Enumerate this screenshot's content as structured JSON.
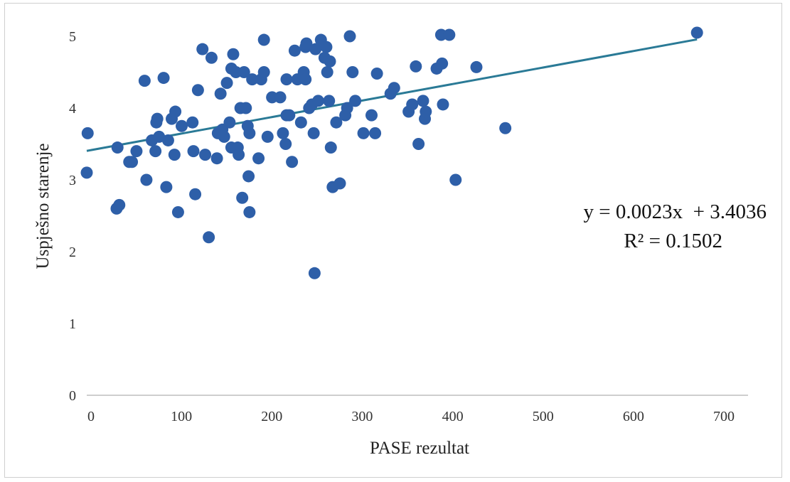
{
  "chart_data": {
    "type": "scatter",
    "title": "",
    "xlabel": "PASE rezultat",
    "ylabel": "Uspješno starenje",
    "xlim": [
      0,
      700
    ],
    "ylim": [
      0,
      5
    ],
    "xticks": [
      "0",
      "100",
      "200",
      "300",
      "400",
      "500",
      "600",
      "700"
    ],
    "yticks": [
      "0",
      "1",
      "2",
      "3",
      "4",
      "5"
    ],
    "grid": false,
    "legend": "none",
    "marker_color": "#2e5fa8",
    "trendline": {
      "slope": 0.0023,
      "intercept": 3.4036,
      "color": "#2a7a96",
      "equation_label": "y = 0.0023x  + 3.4036",
      "r2_label": "R² = 0.1502"
    },
    "points": [
      [
        1,
        3.65
      ],
      [
        0,
        3.1
      ],
      [
        34,
        3.45
      ],
      [
        33,
        2.6
      ],
      [
        36,
        2.65
      ],
      [
        47,
        3.25
      ],
      [
        50,
        3.25
      ],
      [
        55,
        3.4
      ],
      [
        64,
        4.38
      ],
      [
        66,
        3.0
      ],
      [
        72,
        3.55
      ],
      [
        76,
        3.4
      ],
      [
        77,
        3.8
      ],
      [
        78,
        3.85
      ],
      [
        80,
        3.6
      ],
      [
        85,
        4.42
      ],
      [
        88,
        2.9
      ],
      [
        90,
        3.55
      ],
      [
        94,
        3.85
      ],
      [
        97,
        3.35
      ],
      [
        98,
        3.95
      ],
      [
        101,
        2.55
      ],
      [
        105,
        3.75
      ],
      [
        117,
        3.8
      ],
      [
        118,
        3.4
      ],
      [
        120,
        2.8
      ],
      [
        123,
        4.25
      ],
      [
        128,
        4.82
      ],
      [
        131,
        3.35
      ],
      [
        135,
        2.2
      ],
      [
        138,
        4.7
      ],
      [
        144,
        3.3
      ],
      [
        145,
        3.65
      ],
      [
        148,
        4.2
      ],
      [
        150,
        3.7
      ],
      [
        152,
        3.6
      ],
      [
        155,
        4.35
      ],
      [
        158,
        3.8
      ],
      [
        160,
        4.55
      ],
      [
        160,
        3.45
      ],
      [
        162,
        4.75
      ],
      [
        165,
        4.5
      ],
      [
        167,
        3.45
      ],
      [
        168,
        3.35
      ],
      [
        170,
        4.0
      ],
      [
        172,
        2.75
      ],
      [
        174,
        4.5
      ],
      [
        176,
        4.0
      ],
      [
        178,
        3.75
      ],
      [
        179,
        3.05
      ],
      [
        180,
        3.65
      ],
      [
        180,
        2.55
      ],
      [
        183,
        4.4
      ],
      [
        190,
        3.3
      ],
      [
        193,
        4.4
      ],
      [
        196,
        4.95
      ],
      [
        196,
        4.5
      ],
      [
        200,
        3.6
      ],
      [
        205,
        4.15
      ],
      [
        214,
        4.15
      ],
      [
        217,
        3.65
      ],
      [
        220,
        3.5
      ],
      [
        221,
        3.9
      ],
      [
        221,
        4.4
      ],
      [
        224,
        3.9
      ],
      [
        227,
        3.25
      ],
      [
        230,
        4.8
      ],
      [
        233,
        4.4
      ],
      [
        237,
        3.8
      ],
      [
        240,
        4.5
      ],
      [
        242,
        4.4
      ],
      [
        242,
        4.85
      ],
      [
        243,
        4.9
      ],
      [
        246,
        4.0
      ],
      [
        249,
        4.05
      ],
      [
        251,
        3.65
      ],
      [
        252,
        1.7
      ],
      [
        253,
        4.82
      ],
      [
        256,
        4.1
      ],
      [
        259,
        4.95
      ],
      [
        263,
        4.7
      ],
      [
        265,
        4.85
      ],
      [
        266,
        4.5
      ],
      [
        268,
        4.1
      ],
      [
        269,
        4.65
      ],
      [
        270,
        3.45
      ],
      [
        272,
        2.9
      ],
      [
        276,
        3.8
      ],
      [
        280,
        2.95
      ],
      [
        286,
        3.9
      ],
      [
        288,
        4.0
      ],
      [
        291,
        5.0
      ],
      [
        294,
        4.5
      ],
      [
        297,
        4.1
      ],
      [
        306,
        3.65
      ],
      [
        315,
        3.9
      ],
      [
        319,
        3.65
      ],
      [
        321,
        4.48
      ],
      [
        336,
        4.2
      ],
      [
        340,
        4.28
      ],
      [
        356,
        3.95
      ],
      [
        360,
        4.05
      ],
      [
        364,
        4.58
      ],
      [
        367,
        3.5
      ],
      [
        372,
        4.1
      ],
      [
        374,
        3.85
      ],
      [
        375,
        3.95
      ],
      [
        387,
        4.55
      ],
      [
        392,
        5.02
      ],
      [
        393,
        4.62
      ],
      [
        394,
        4.05
      ],
      [
        401,
        5.02
      ],
      [
        408,
        3.0
      ],
      [
        431,
        4.57
      ],
      [
        463,
        3.72
      ],
      [
        675,
        5.05
      ]
    ]
  }
}
